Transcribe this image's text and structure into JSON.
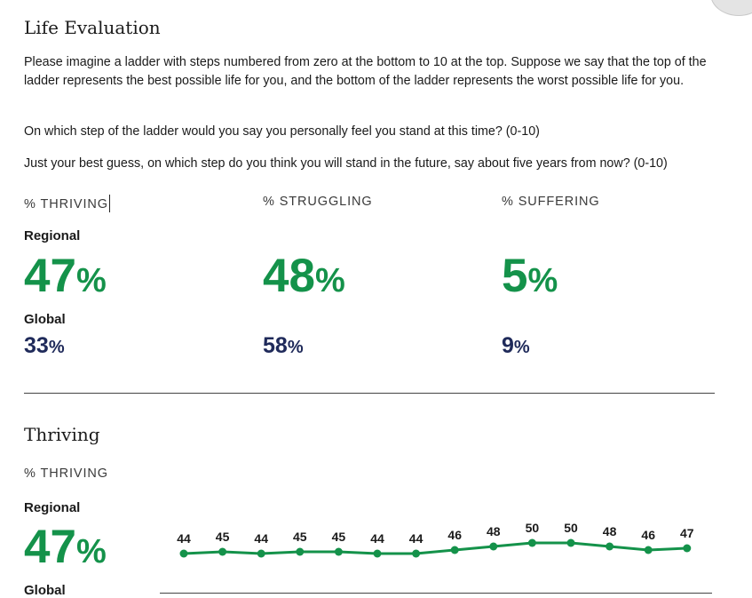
{
  "life_evaluation": {
    "title": "Life Evaluation",
    "paragraphs": [
      "Please imagine a ladder with steps numbered from zero at the bottom to 10 at the top. Suppose we say that the top of the ladder represents the best possible life for you, and the bottom of the ladder represents the worst possible life for you.",
      "On which step of the ladder would you say you personally feel you stand at this time? (0-10)",
      "Just your best guess, on which step do you think you will stand in the future, say about five years from now? (0-10)"
    ],
    "regional_label": "Regional",
    "global_label": "Global",
    "pct_sign": "%",
    "metrics": [
      {
        "label": "% THRIVING",
        "regional": "47",
        "global": "33"
      },
      {
        "label": "% STRUGGLING",
        "regional": "48",
        "global": "58"
      },
      {
        "label": "% SUFFERING",
        "regional": "5",
        "global": "9"
      }
    ]
  },
  "thriving": {
    "title": "Thriving",
    "metric_label": "% THRIVING",
    "regional_label": "Regional",
    "regional_value": "47",
    "global_label": "Global"
  },
  "colors": {
    "regional_green": "#14924a",
    "global_navy": "#1f2a5a"
  },
  "chart_data": {
    "type": "line",
    "title": "",
    "xlabel": "",
    "ylabel": "",
    "series": [
      {
        "values": [
          44,
          45,
          44,
          45,
          45,
          44,
          44,
          46,
          48,
          50,
          50,
          48,
          46,
          47
        ]
      }
    ],
    "data_labels": true,
    "grid": false
  }
}
